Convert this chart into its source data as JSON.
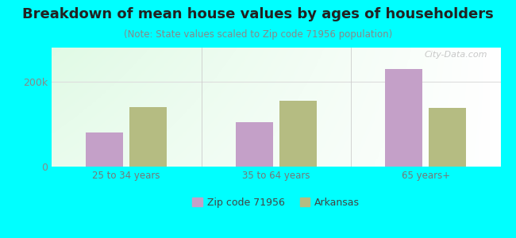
{
  "title": "Breakdown of mean house values by ages of householders",
  "subtitle": "(Note: State values scaled to Zip code 71956 population)",
  "categories": [
    "25 to 34 years",
    "35 to 64 years",
    "65 years+"
  ],
  "zip_values": [
    80000,
    105000,
    230000
  ],
  "state_values": [
    140000,
    155000,
    138000
  ],
  "ylim": [
    0,
    280000
  ],
  "yticks": [
    0,
    200000
  ],
  "ytick_labels": [
    "0",
    "200k"
  ],
  "zip_color": "#c4a0c8",
  "state_color": "#b5bc82",
  "background_outer": "#00ffff",
  "legend_zip_label": "Zip code 71956",
  "legend_state_label": "Arkansas",
  "bar_width": 0.25,
  "watermark": "City-Data.com",
  "title_fontsize": 13,
  "subtitle_fontsize": 8.5
}
